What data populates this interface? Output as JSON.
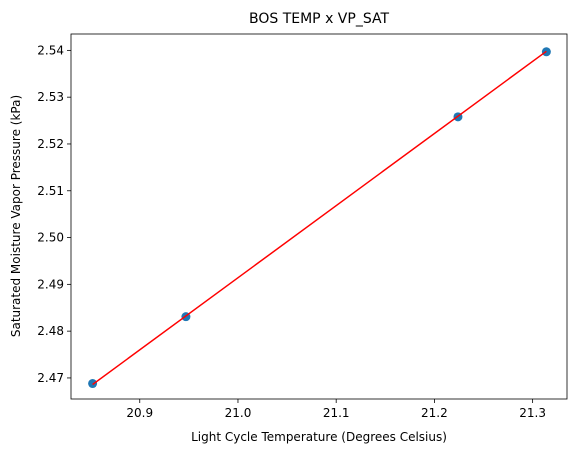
{
  "chart_data": {
    "type": "scatter",
    "title": "BOS TEMP x VP_SAT",
    "xlabel": "Light Cycle Temperature (Degrees Celsius)",
    "ylabel": "Saturated Moisture Vapor Pressure (kPa)",
    "xlim": [
      20.83,
      21.335
    ],
    "ylim": [
      2.4655,
      2.5435
    ],
    "xticks": [
      "20.9",
      "21.0",
      "21.1",
      "21.2",
      "21.3"
    ],
    "yticks": [
      "2.47",
      "2.48",
      "2.49",
      "2.50",
      "2.51",
      "2.52",
      "2.53",
      "2.54"
    ],
    "grid": false,
    "series": [
      {
        "kind": "scatter",
        "color": "#1f77b4",
        "points": [
          {
            "x": 20.852,
            "y": 2.4688
          },
          {
            "x": 20.947,
            "y": 2.4831
          },
          {
            "x": 21.224,
            "y": 2.5258
          },
          {
            "x": 21.314,
            "y": 2.5397
          }
        ]
      },
      {
        "kind": "line",
        "color": "#ff0000",
        "points": [
          {
            "x": 20.852,
            "y": 2.4686
          },
          {
            "x": 21.314,
            "y": 2.5398
          }
        ]
      }
    ]
  }
}
